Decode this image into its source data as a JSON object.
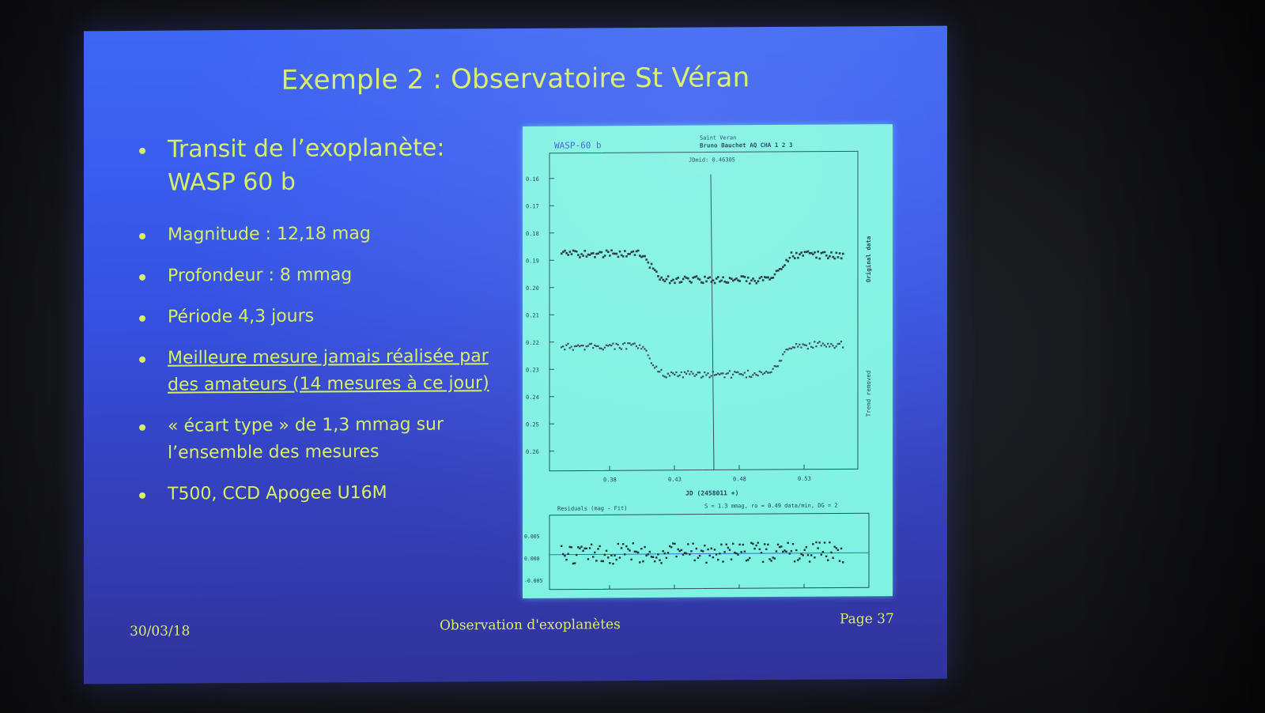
{
  "slide": {
    "title": "Exemple 2 : Observatoire St Véran",
    "bullets": [
      {
        "lines": [
          "Transit de l’exoplanète:",
          "WASP 60 b"
        ]
      },
      {
        "lines": [
          "Magnitude : 12,18 mag"
        ]
      },
      {
        "lines": [
          "Profondeur : 8 mmag"
        ]
      },
      {
        "lines": [
          "Période 4,3 jours"
        ]
      },
      {
        "lines": [
          "Meilleure mesure jamais réalisée par",
          "des amateurs (14 mesures à ce jour)"
        ]
      },
      {
        "lines": [
          "« écart type » de 1,3 mmag sur",
          "l’ensemble des mesures"
        ]
      },
      {
        "lines": [
          "T500, CCD Apogee U16M"
        ]
      }
    ],
    "footer": {
      "date": "30/03/18",
      "center": "Observation d'exoplanètes",
      "page": "Page 37"
    }
  },
  "plot": {
    "object": "WASP-60 b",
    "site": "Saint Veran",
    "observer": "Bruno Bauchet AQ CHA 1 2 3",
    "jdmid": "JDmid: 0.46305",
    "yticks": [
      "0.16",
      "0.17",
      "0.18",
      "0.19",
      "0.20",
      "0.21",
      "0.22",
      "0.23",
      "0.24",
      "0.25",
      "0.26"
    ],
    "xticks": [
      "0.38",
      "0.43",
      "0.48",
      "0.53"
    ],
    "xlabel": "JD (2458011 +)",
    "right_label_top": "Original data",
    "right_label_bottom": "Trend removed",
    "residuals_label": "Residuals (mag - Fit)",
    "residuals_stats": "S = 1.3 mmag, ro = 0.49 data/min, DG = 2",
    "res_yticks": [
      "0.005",
      "0.000",
      "-0.005"
    ],
    "res_xticks": [
      "0.38",
      "0.43",
      "0.48",
      "0.53"
    ]
  }
}
